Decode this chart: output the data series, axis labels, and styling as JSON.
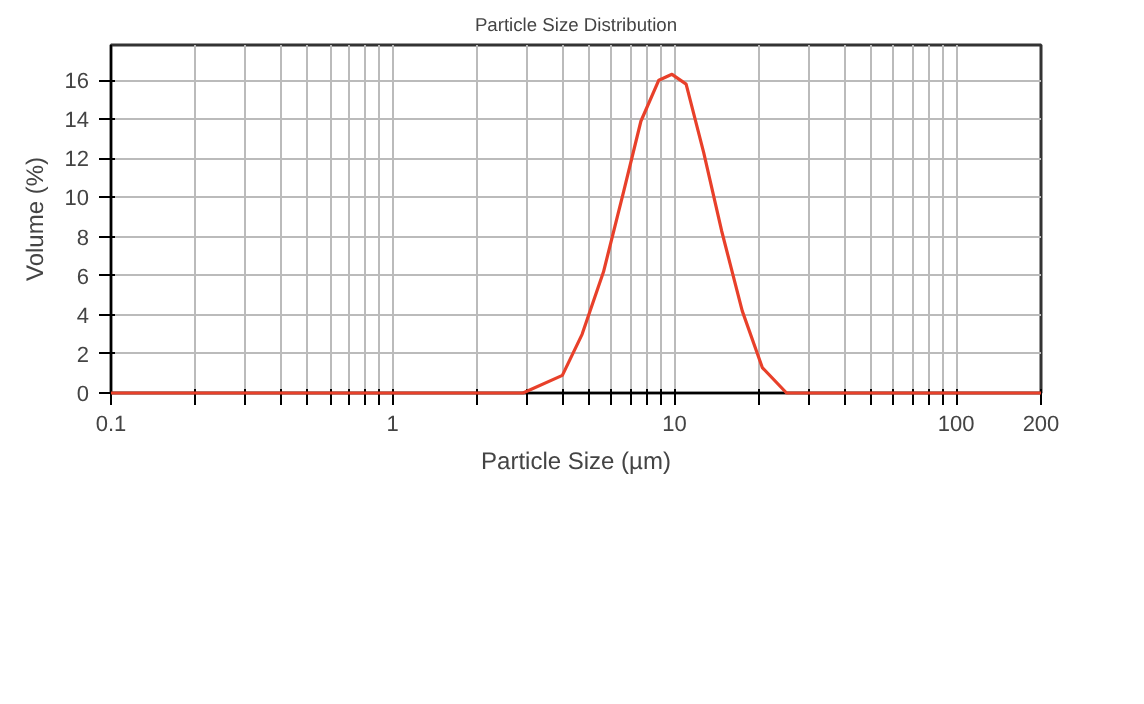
{
  "chart_data": {
    "type": "line",
    "title": "Particle Size Distribution",
    "xlabel": "Particle Size (µm)",
    "ylabel": "Volume (%)",
    "log": "x",
    "grid": true,
    "marker": "none",
    "line_style": "solid",
    "xlim": [
      0.1,
      200
    ],
    "ylim": [
      0,
      17.8
    ],
    "xticks": [
      {
        "value": 0.1,
        "label": "0.1"
      },
      {
        "value": 0.2,
        "label": null
      },
      {
        "value": 0.3,
        "label": null
      },
      {
        "value": 0.4,
        "label": null
      },
      {
        "value": 0.5,
        "label": null
      },
      {
        "value": 0.6,
        "label": null
      },
      {
        "value": 0.7,
        "label": null
      },
      {
        "value": 0.8,
        "label": null
      },
      {
        "value": 0.9,
        "label": null
      },
      1,
      {
        "value": 2,
        "label": null
      },
      {
        "value": 3,
        "label": null
      },
      {
        "value": 4,
        "label": null
      },
      {
        "value": 5,
        "label": null
      },
      {
        "value": 6,
        "label": null
      },
      {
        "value": 7,
        "label": null
      },
      {
        "value": 8,
        "label": null
      },
      {
        "value": 9,
        "label": null
      },
      10,
      {
        "value": 20,
        "label": null
      },
      {
        "value": 30,
        "label": null
      },
      {
        "value": 40,
        "label": null
      },
      {
        "value": 50,
        "label": null
      },
      {
        "value": 60,
        "label": null
      },
      {
        "value": 70,
        "label": null
      },
      {
        "value": 80,
        "label": null
      },
      {
        "value": 90,
        "label": null
      },
      100,
      200
    ],
    "yticks": [
      0,
      2,
      4,
      6,
      8,
      10,
      12,
      14,
      16
    ],
    "series": [
      {
        "color": "#e8402a",
        "x": [
          0.1,
          1,
          2.9,
          4.0,
          4.7,
          5.6,
          6.6,
          7.6,
          8.8,
          9.8,
          11,
          12.7,
          14.7,
          17.4,
          20.5,
          25,
          50,
          200
        ],
        "values": [
          0,
          0,
          0,
          0.9,
          3.0,
          6.2,
          10.3,
          13.9,
          16.0,
          16.3,
          15.8,
          12.3,
          8.3,
          4.2,
          1.3,
          0,
          0,
          0
        ]
      }
    ]
  }
}
